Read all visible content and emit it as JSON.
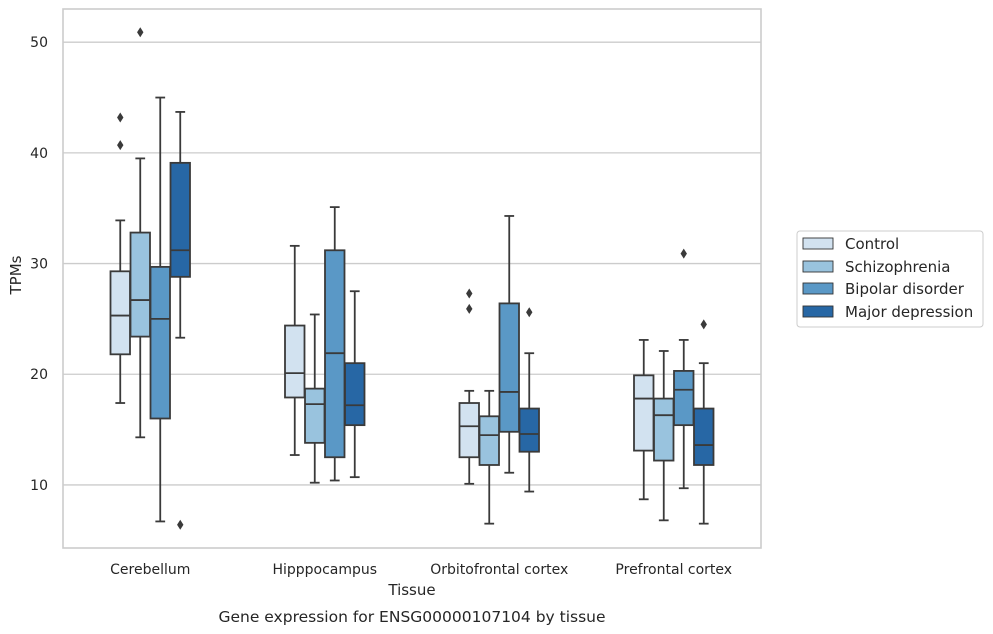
{
  "chart_data": {
    "type": "boxplot",
    "caption": "Gene expression for ENSG00000107104 by tissue",
    "xlabel": "Tissue",
    "ylabel": "TPMs",
    "ylim": [
      4.3,
      53
    ],
    "yticks": [
      10,
      20,
      30,
      40,
      50
    ],
    "grid": "horizontal",
    "legend_position": "right",
    "categories": [
      "Cerebellum",
      "Hipppocampus",
      "Orbitofrontal cortex",
      "Prefrontal cortex"
    ],
    "series": [
      {
        "name": "Control",
        "color": "#d2e2f0",
        "boxes": [
          {
            "whislo": 17.4,
            "q1": 21.8,
            "med": 25.3,
            "q3": 29.3,
            "whishi": 33.9,
            "fliers": [
              43.2,
              40.7
            ]
          },
          {
            "whislo": 12.7,
            "q1": 17.9,
            "med": 20.1,
            "q3": 24.4,
            "whishi": 31.6,
            "fliers": []
          },
          {
            "whislo": 10.1,
            "q1": 12.5,
            "med": 15.3,
            "q3": 17.4,
            "whishi": 18.5,
            "fliers": [
              27.3,
              25.9
            ]
          },
          {
            "whislo": 8.7,
            "q1": 13.1,
            "med": 17.8,
            "q3": 19.9,
            "whishi": 23.1,
            "fliers": []
          }
        ]
      },
      {
        "name": "Schizophrenia",
        "color": "#99c3de",
        "boxes": [
          {
            "whislo": 14.3,
            "q1": 23.4,
            "med": 26.7,
            "q3": 32.8,
            "whishi": 39.5,
            "fliers": [
              50.9
            ]
          },
          {
            "whislo": 10.2,
            "q1": 13.8,
            "med": 17.3,
            "q3": 18.7,
            "whishi": 25.4,
            "fliers": []
          },
          {
            "whislo": 6.5,
            "q1": 11.8,
            "med": 14.5,
            "q3": 16.2,
            "whishi": 18.5,
            "fliers": []
          },
          {
            "whislo": 6.8,
            "q1": 12.2,
            "med": 16.3,
            "q3": 17.8,
            "whishi": 22.1,
            "fliers": []
          }
        ]
      },
      {
        "name": "Bipolar disorder",
        "color": "#5a98c6",
        "boxes": [
          {
            "whislo": 6.7,
            "q1": 16.0,
            "med": 25.0,
            "q3": 29.7,
            "whishi": 45.0,
            "fliers": []
          },
          {
            "whislo": 10.4,
            "q1": 12.5,
            "med": 21.9,
            "q3": 31.2,
            "whishi": 35.1,
            "fliers": []
          },
          {
            "whislo": 11.1,
            "q1": 14.8,
            "med": 18.4,
            "q3": 26.4,
            "whishi": 34.3,
            "fliers": []
          },
          {
            "whislo": 9.7,
            "q1": 15.4,
            "med": 18.6,
            "q3": 20.3,
            "whishi": 23.1,
            "fliers": [
              30.9
            ]
          }
        ]
      },
      {
        "name": "Major depression",
        "color": "#2767a5",
        "boxes": [
          {
            "whislo": 23.3,
            "q1": 28.8,
            "med": 31.2,
            "q3": 39.1,
            "whishi": 43.7,
            "fliers": [
              6.4
            ]
          },
          {
            "whislo": 10.7,
            "q1": 15.4,
            "med": 17.2,
            "q3": 21.0,
            "whishi": 27.5,
            "fliers": []
          },
          {
            "whislo": 9.4,
            "q1": 13.0,
            "med": 14.6,
            "q3": 16.9,
            "whishi": 21.9,
            "fliers": [
              25.6
            ]
          },
          {
            "whislo": 6.5,
            "q1": 11.8,
            "med": 13.6,
            "q3": 16.9,
            "whishi": 21.0,
            "fliers": [
              24.5
            ]
          }
        ]
      }
    ]
  }
}
